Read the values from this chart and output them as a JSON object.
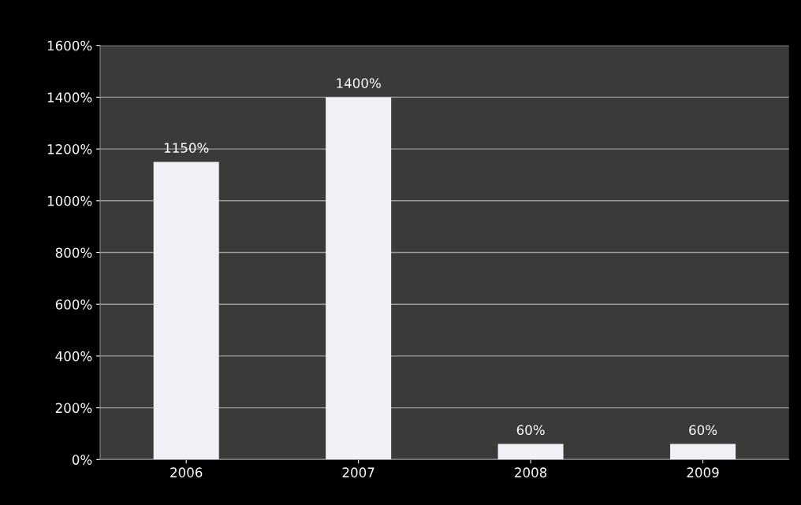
{
  "chart_data": {
    "type": "bar",
    "categories": [
      "2006",
      "2007",
      "2008",
      "2009"
    ],
    "values": [
      1150,
      1400,
      60,
      60
    ],
    "value_labels": [
      "1150%",
      "1400%",
      "60%",
      "60%"
    ],
    "color": "#f2f0f7",
    "ylim": [
      0,
      1600
    ],
    "yticks": [
      {
        "value": 0,
        "label": "0%"
      },
      {
        "value": 200,
        "label": "200%"
      },
      {
        "value": 400,
        "label": "400%"
      },
      {
        "value": 600,
        "label": "600%"
      },
      {
        "value": 800,
        "label": "800%"
      },
      {
        "value": 1000,
        "label": "1000%"
      },
      {
        "value": 1200,
        "label": "1200%"
      },
      {
        "value": 1400,
        "label": "1400%"
      },
      {
        "value": 1600,
        "label": "1600%"
      }
    ],
    "grid": "y"
  }
}
